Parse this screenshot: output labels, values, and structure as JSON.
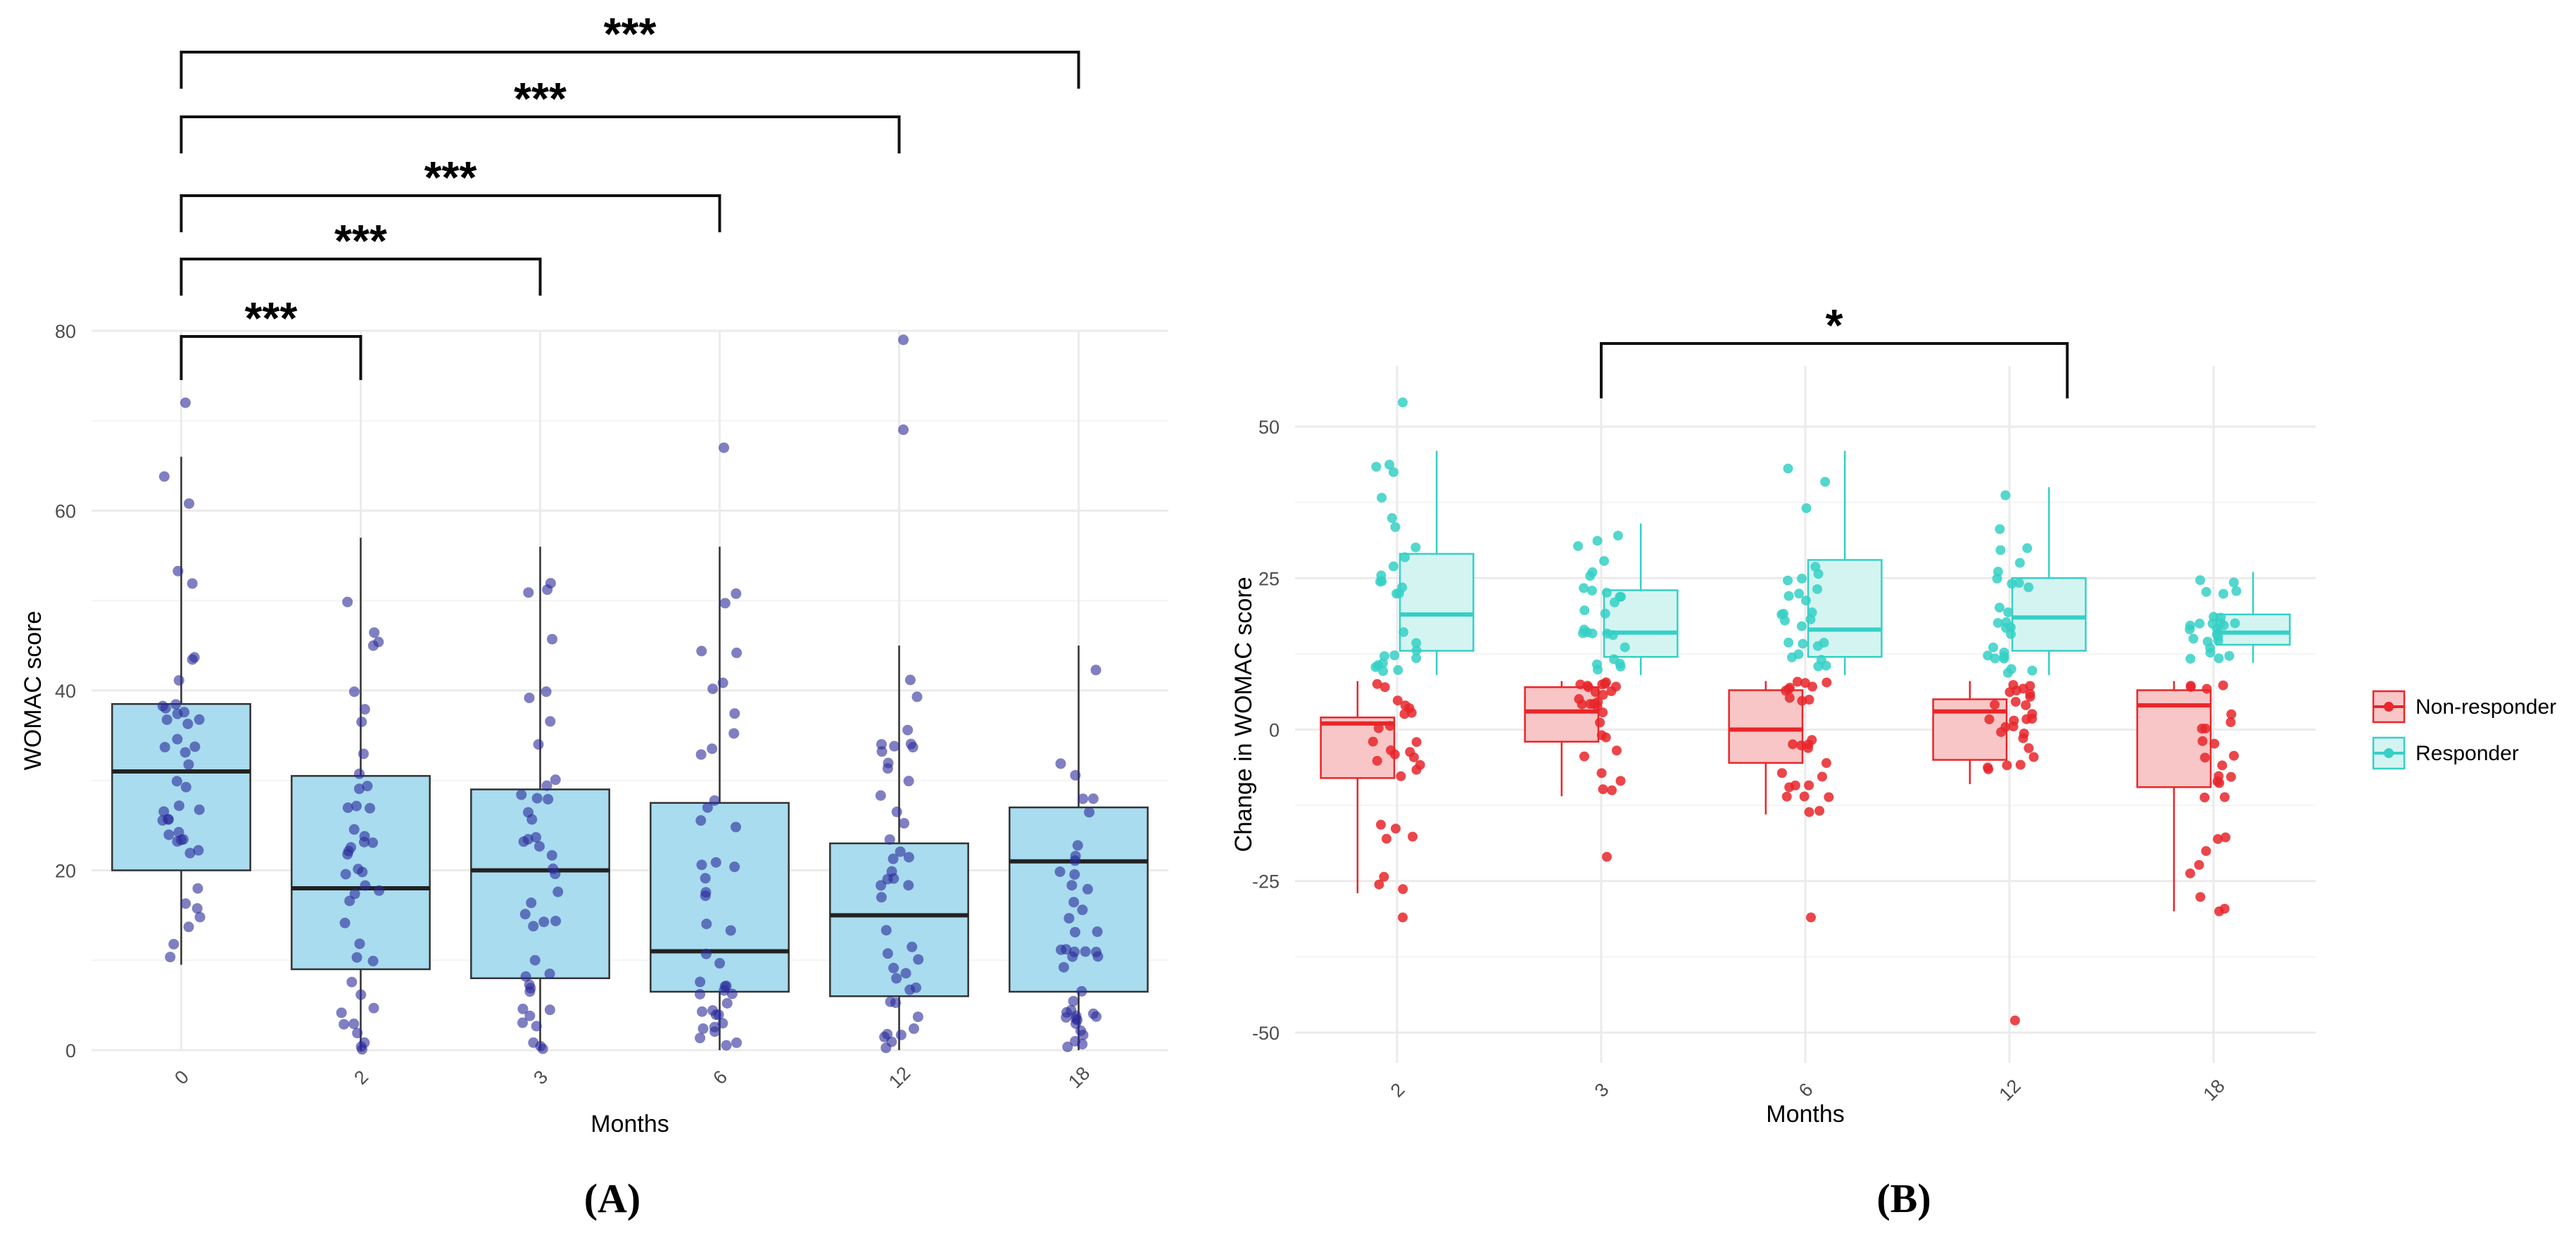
{
  "chart_data": [
    {
      "type": "box",
      "panel_label": "(A)",
      "xlabel": "Months",
      "ylabel": "WOMAC score",
      "categories": [
        "0",
        "2",
        "3",
        "6",
        "12",
        "18"
      ],
      "ylim": [
        0,
        80
      ],
      "yticks": [
        0,
        20,
        40,
        60,
        80
      ],
      "box_color": "#a9dcef",
      "point_color": "#2a2a9a",
      "boxes": [
        {
          "q1": 20,
          "median": 31,
          "q3": 38.5,
          "lower": 9.5,
          "upper": 66
        },
        {
          "q1": 9,
          "median": 18,
          "q3": 30.5,
          "lower": 0,
          "upper": 57
        },
        {
          "q1": 8,
          "median": 20,
          "q3": 29,
          "lower": 0,
          "upper": 56
        },
        {
          "q1": 6.5,
          "median": 11,
          "q3": 27.5,
          "lower": 0,
          "upper": 56
        },
        {
          "q1": 6,
          "median": 15,
          "q3": 23,
          "lower": 0,
          "upper": 45
        },
        {
          "q1": 6.5,
          "median": 21,
          "q3": 27,
          "lower": 0,
          "upper": 45
        }
      ],
      "outliers": [
        {
          "category": "6",
          "value": 67
        },
        {
          "category": "12",
          "value": 69
        },
        {
          "category": "12",
          "value": 79
        },
        {
          "category": "0",
          "value": 72
        }
      ],
      "significance": [
        {
          "from": "0",
          "to": "2",
          "label": "***"
        },
        {
          "from": "0",
          "to": "3",
          "label": "***"
        },
        {
          "from": "0",
          "to": "6",
          "label": "***"
        },
        {
          "from": "0",
          "to": "12",
          "label": "***"
        },
        {
          "from": "0",
          "to": "18",
          "label": "***"
        }
      ]
    },
    {
      "type": "box",
      "panel_label": "(B)",
      "xlabel": "Months",
      "ylabel": "Change in WOMAC score",
      "categories": [
        "2",
        "3",
        "6",
        "12",
        "18"
      ],
      "ylim": [
        -55,
        60
      ],
      "yticks": [
        -50,
        -25,
        0,
        25,
        50
      ],
      "legend": [
        "Non-responder",
        "Responder"
      ],
      "series": [
        {
          "name": "Non-responder",
          "color": "#e8262a",
          "fill": "#f8c6c6",
          "boxes": [
            {
              "q1": -8,
              "median": 1,
              "q3": 2,
              "lower": -27,
              "upper": 8
            },
            {
              "q1": -2,
              "median": 3,
              "q3": 7,
              "lower": -11,
              "upper": 8
            },
            {
              "q1": -5.5,
              "median": 0,
              "q3": 6.5,
              "lower": -14,
              "upper": 8
            },
            {
              "q1": -5,
              "median": 3,
              "q3": 5,
              "lower": -9,
              "upper": 8
            },
            {
              "q1": -9.5,
              "median": 4,
              "q3": 6.5,
              "lower": -30,
              "upper": 8
            }
          ],
          "outliers": [
            {
              "category": "2",
              "value": -31
            },
            {
              "category": "3",
              "value": -21
            },
            {
              "category": "6",
              "value": -31
            },
            {
              "category": "12",
              "value": -48
            },
            {
              "category": "18",
              "value": -30
            }
          ]
        },
        {
          "name": "Responder",
          "color": "#35d0c6",
          "fill": "#d4f4f2",
          "boxes": [
            {
              "q1": 13,
              "median": 19,
              "q3": 29,
              "lower": 9,
              "upper": 46
            },
            {
              "q1": 12,
              "median": 16,
              "q3": 23,
              "lower": 9,
              "upper": 34
            },
            {
              "q1": 12,
              "median": 16.5,
              "q3": 28,
              "lower": 9,
              "upper": 46
            },
            {
              "q1": 13,
              "median": 18.5,
              "q3": 25,
              "lower": 9,
              "upper": 40
            },
            {
              "q1": 14,
              "median": 16,
              "q3": 19,
              "lower": 11,
              "upper": 26
            }
          ],
          "outliers": [
            {
              "category": "2",
              "value": 54
            }
          ]
        }
      ],
      "significance": [
        {
          "from": "3",
          "to": "12",
          "label": "*"
        }
      ]
    }
  ]
}
